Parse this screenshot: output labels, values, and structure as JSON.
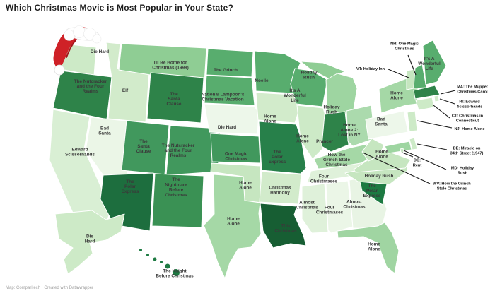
{
  "title": "Which Christmas Movie is Most Popular in Your State?",
  "attribution": "Map: Comparitech · Created with Datawrapper",
  "map": {
    "background": "#ffffff",
    "state_border_color": "#ffffff",
    "state_label_color": "#3a3a3a",
    "callout_text_color": "#161616",
    "santa_hat": {
      "red": "#cf2127",
      "red_dark": "#a3171c",
      "trim_white": "#ffffff"
    },
    "states": [
      {
        "id": "WA",
        "movie": "Die Hard",
        "color": "#cdeac7"
      },
      {
        "id": "OR",
        "movie": "The Nutcracker and the Four Realms",
        "color": "#2e8349"
      },
      {
        "id": "CA",
        "movie": "Edward Scissorhands",
        "color": "#d9efd4"
      },
      {
        "id": "NV",
        "movie": "Bad Santa",
        "color": "#ebf6e7"
      },
      {
        "id": "ID",
        "movie": "Elf",
        "color": "#d2ebcb"
      },
      {
        "id": "MT",
        "movie": "I'll Be Home for Christmas (1998)",
        "color": "#8fcd94"
      },
      {
        "id": "WY",
        "movie": "The Santa Clause",
        "color": "#2e8349"
      },
      {
        "id": "UT",
        "movie": "The Santa Clause",
        "color": "#41985d"
      },
      {
        "id": "CO",
        "movie": "The Nutcracker and the Four Realms",
        "color": "#41985d"
      },
      {
        "id": "AZ",
        "movie": "The Polar Express",
        "color": "#1d6e3e"
      },
      {
        "id": "NM",
        "movie": "The Nightmare Before Christmas",
        "color": "#3a9154"
      },
      {
        "id": "ND",
        "movie": "The Grinch",
        "color": "#58ad6e"
      },
      {
        "id": "SD",
        "movie": "National Lampoon's Christmas Vacation",
        "color": "#58ad6e"
      },
      {
        "id": "NE",
        "movie": "Die Hard",
        "color": "#edf7ea"
      },
      {
        "id": "KS",
        "movie": "One Magic Christmas",
        "color": "#41985d"
      },
      {
        "id": "OK",
        "movie": "Home Alone",
        "color": "#c6e6c0"
      },
      {
        "id": "TX",
        "movie": "Home Alone",
        "color": "#a5d8a6"
      },
      {
        "id": "MN",
        "movie": "Noelle",
        "color": "#58ad6e"
      },
      {
        "id": "IA",
        "movie": "Home Alone",
        "color": "#d2ebcb"
      },
      {
        "id": "MO",
        "movie": "The Polar Express",
        "color": "#27804a"
      },
      {
        "id": "AR",
        "movie": "Christmas Harmony",
        "color": "#d2ebcb"
      },
      {
        "id": "LA",
        "movie": "This Christmas",
        "color": "#175e33"
      },
      {
        "id": "WI",
        "movie": "It's A Wonderful Life",
        "color": "#58ad6e"
      },
      {
        "id": "IL",
        "movie": "Home Alone",
        "color": "#cdeac7"
      },
      {
        "id": "MI-UP",
        "movie": "Holiday Rush",
        "color": "#8fcd94"
      },
      {
        "id": "MI",
        "movie": "Holiday Rush",
        "color": "#9ed5a1"
      },
      {
        "id": "IN",
        "movie": "Prancer",
        "color": "#2e8349"
      },
      {
        "id": "OH",
        "movie": "Home Alone 2: Lost in NY",
        "color": "#abdaad"
      },
      {
        "id": "KY",
        "movie": "How the Grinch Stole Christmas",
        "color": "#a5d8a6"
      },
      {
        "id": "TN",
        "movie": "Four Christmases",
        "color": "#dff1da"
      },
      {
        "id": "MS",
        "movie": "Almost Christmas",
        "color": "#dff1da"
      },
      {
        "id": "AL",
        "movie": "Four Christmases",
        "color": "#ebf6e7"
      },
      {
        "id": "GA",
        "movie": "Almost Christmas",
        "color": "#e8f4e4"
      },
      {
        "id": "FL",
        "movie": "Home Alone",
        "color": "#a0d5a2"
      },
      {
        "id": "SC",
        "movie": "The Polar Express",
        "color": "#1d7a42"
      },
      {
        "id": "NC",
        "movie": "Holiday Rush",
        "color": "#c6e6c0"
      },
      {
        "id": "VA",
        "movie": "Home Alone",
        "color": "#c6e6c0"
      },
      {
        "id": "WV",
        "movie": "How the Grinch Stole Christmas",
        "color": "#c6e6c0"
      },
      {
        "id": "MD",
        "movie": "Holiday Rush",
        "color": "#9ed5a1"
      },
      {
        "id": "DE",
        "movie": "Miracle on 34th Street (1947)",
        "color": "#cdeac7"
      },
      {
        "id": "DC",
        "movie": "Rent",
        "color": "#c6e6c0"
      },
      {
        "id": "PA",
        "movie": "Bad Santa",
        "color": "#edf7ea"
      },
      {
        "id": "NJ",
        "movie": "Home Alone",
        "color": "#cdeac7"
      },
      {
        "id": "NY",
        "movie": "Home Alone",
        "color": "#a5d8a6"
      },
      {
        "id": "CT",
        "movie": "Christmas in Connecticut",
        "color": "#cdeac7"
      },
      {
        "id": "RI",
        "movie": "Edward Scissorhands",
        "color": "#d2ebcb"
      },
      {
        "id": "MA",
        "movie": "The Muppet Christmas Carol",
        "color": "#2e8349"
      },
      {
        "id": "VT",
        "movie": "Holiday Inn",
        "color": "#c6e6c0"
      },
      {
        "id": "NH",
        "movie": "One Magic Christmas",
        "color": "#58ad6e"
      },
      {
        "id": "ME",
        "movie": "It's A Wonderful Life",
        "color": "#58ad6e"
      },
      {
        "id": "AK",
        "movie": "Die Hard",
        "color": "#cdeac7"
      },
      {
        "id": "HI",
        "movie": "The Knight Before Christmas",
        "color": "#1d7a42"
      }
    ],
    "callouts": [
      {
        "id": "NH",
        "lines": [
          "NH: One Magic",
          "Christmas"
        ]
      },
      {
        "id": "VT",
        "lines": [
          "VT: Holiday Inn"
        ]
      },
      {
        "id": "MA",
        "lines": [
          "MA: The Muppet",
          "Christmas Carol"
        ]
      },
      {
        "id": "RI",
        "lines": [
          "RI: Edward",
          "Scissorhands"
        ]
      },
      {
        "id": "CT",
        "lines": [
          "CT: Christmas in",
          "Connecticut"
        ]
      },
      {
        "id": "NJ",
        "lines": [
          "NJ: Home Alone"
        ]
      },
      {
        "id": "DE",
        "lines": [
          "DE: Miracle on",
          "34th Street (1947)"
        ]
      },
      {
        "id": "MD",
        "lines": [
          "MD: Holiday",
          "Rush"
        ]
      },
      {
        "id": "DC",
        "lines": [
          "DC:",
          "Rent"
        ]
      },
      {
        "id": "WV",
        "lines": [
          "WV: How the Grinch",
          "Stole Christmas"
        ]
      }
    ]
  }
}
